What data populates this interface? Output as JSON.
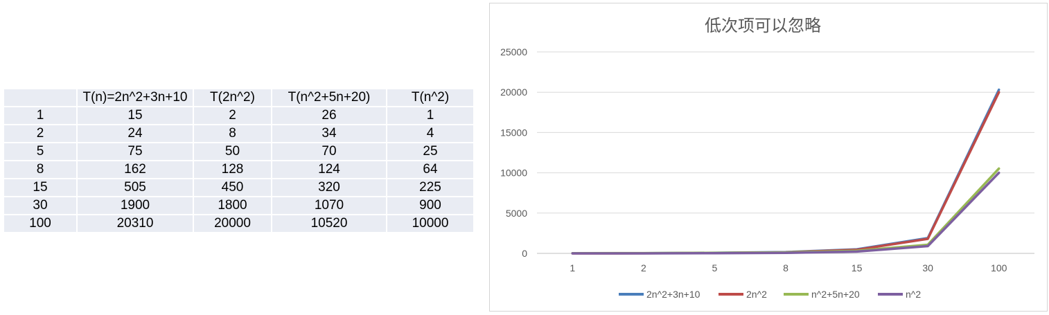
{
  "table": {
    "headers": [
      "",
      "T(n)=2n^2+3n+10",
      "T(2n^2)",
      "T(n^2+5n+20)",
      "T(n^2)"
    ],
    "rows": [
      [
        "1",
        "15",
        "2",
        "26",
        "1"
      ],
      [
        "2",
        "24",
        "8",
        "34",
        "4"
      ],
      [
        "5",
        "75",
        "50",
        "70",
        "25"
      ],
      [
        "8",
        "162",
        "128",
        "124",
        "64"
      ],
      [
        "15",
        "505",
        "450",
        "320",
        "225"
      ],
      [
        "30",
        "1900",
        "1800",
        "1070",
        "900"
      ],
      [
        "100",
        "20310",
        "20000",
        "10520",
        "10000"
      ]
    ]
  },
  "chart_data": {
    "type": "line",
    "title": "低次项可以忽略",
    "categories": [
      "1",
      "2",
      "5",
      "8",
      "15",
      "30",
      "100"
    ],
    "series": [
      {
        "name": "2n^2+3n+10",
        "color": "#4a7ebb",
        "values": [
          15,
          24,
          75,
          162,
          505,
          1900,
          20310
        ]
      },
      {
        "name": "2n^2",
        "color": "#be4b48",
        "values": [
          2,
          8,
          50,
          128,
          450,
          1800,
          20000
        ]
      },
      {
        "name": "n^2+5n+20",
        "color": "#98b954",
        "values": [
          26,
          34,
          70,
          124,
          320,
          1070,
          10520
        ]
      },
      {
        "name": "n^2",
        "color": "#7d5fa0",
        "values": [
          1,
          4,
          25,
          64,
          225,
          900,
          10000
        ]
      }
    ],
    "ylim": [
      0,
      25000
    ],
    "yticks": [
      "0",
      "5000",
      "10000",
      "15000",
      "20000",
      "25000"
    ],
    "grid": true,
    "legend": "bottom"
  }
}
